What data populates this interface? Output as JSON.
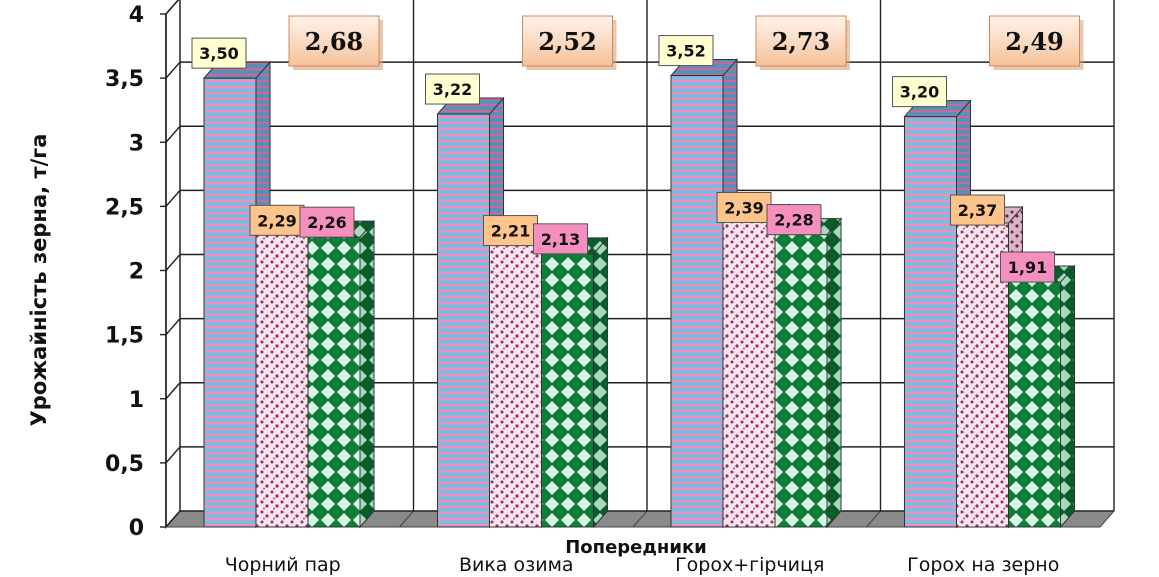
{
  "chart_data": {
    "type": "bar",
    "ylabel": "Урожайність зерна, т/га",
    "xlabel": "Попередники",
    "categories": [
      "Чорний пар",
      "Вика озима",
      "Горох+гірчиця",
      "Горох на зерно"
    ],
    "yticks": [
      "0",
      "0,5",
      "1",
      "1,5",
      "2",
      "2,5",
      "3",
      "3,5",
      "4"
    ],
    "ylim": [
      0,
      4
    ],
    "grid": true,
    "series": [
      {
        "values": [
          3.5,
          3.22,
          3.52,
          3.2
        ],
        "labels": [
          "3,50",
          "3,22",
          "3,52",
          "3,20"
        ],
        "color": "#7fb0d8",
        "label_bg": "#ffffd0"
      },
      {
        "values": [
          2.29,
          2.21,
          2.39,
          2.37
        ],
        "labels": [
          "2,29",
          "2,21",
          "2,39",
          "2,37"
        ],
        "color": "#f6dde9",
        "label_bg": "#ffc48a"
      },
      {
        "values": [
          2.26,
          2.13,
          2.28,
          1.91
        ],
        "labels": [
          "2,26",
          "2,13",
          "2,28",
          "1,91"
        ],
        "color": "#0f7d3a",
        "label_bg": "#f58fbf"
      }
    ],
    "averages": [
      "2,68",
      "2,52",
      "2,73",
      "2,49"
    ]
  }
}
